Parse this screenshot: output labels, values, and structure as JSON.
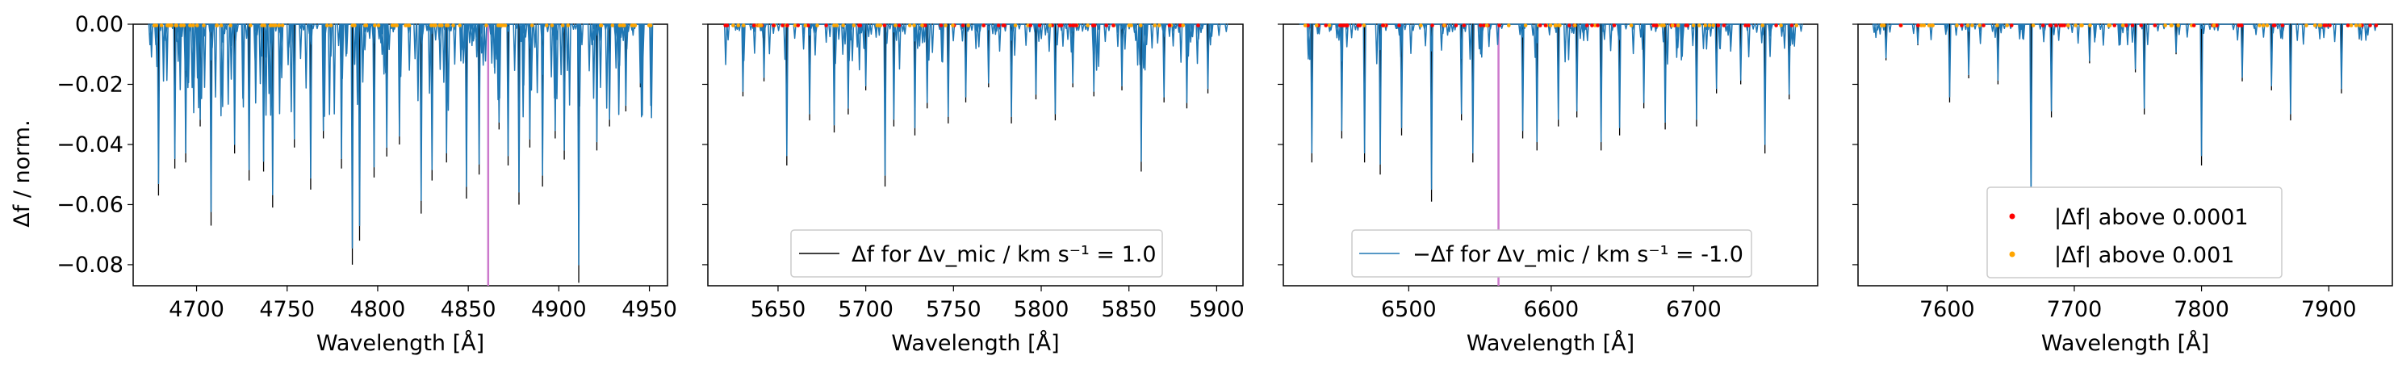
{
  "figure": {
    "ylabel": "Δf / norm.",
    "xlabel": "Wavelength [Å]"
  },
  "legend": {
    "black_line": "Δf for Δv_mic / km s⁻¹ = 1.0",
    "blue_line": "−Δf for Δv_mic / km s⁻¹ = -1.0",
    "red_dots": "|Δf| above 0.0001",
    "orange_dots": "|Δf| above 0.001"
  },
  "colors": {
    "black_series": "#000000",
    "blue_series": "#1f77b4",
    "red_markers": "#ff0000",
    "orange_markers": "#ffa500",
    "vline": "#cc79cc"
  },
  "chart_data": [
    {
      "type": "line",
      "panel": "panel-1",
      "xlim": [
        4665,
        4960
      ],
      "ylim": [
        -0.087,
        0.0
      ],
      "xticks": [
        "4700",
        "4750",
        "4800",
        "4850",
        "4900",
        "4950"
      ],
      "yticks": [
        "0.00",
        "−0.02",
        "−0.04",
        "−0.06",
        "−0.08"
      ],
      "vline_x": 4861,
      "legend": "none",
      "lines": [
        [
          4679,
          -0.057
        ],
        [
          4688,
          -0.048
        ],
        [
          4694,
          -0.046
        ],
        [
          4702,
          -0.034
        ],
        [
          4708,
          -0.067
        ],
        [
          4721,
          -0.043
        ],
        [
          4729,
          -0.052
        ],
        [
          4737,
          -0.049
        ],
        [
          4742,
          -0.061
        ],
        [
          4754,
          -0.041
        ],
        [
          4763,
          -0.055
        ],
        [
          4770,
          -0.038
        ],
        [
          4780,
          -0.048
        ],
        [
          4786,
          -0.08
        ],
        [
          4790,
          -0.072
        ],
        [
          4798,
          -0.051
        ],
        [
          4805,
          -0.044
        ],
        [
          4812,
          -0.04
        ],
        [
          4824,
          -0.063
        ],
        [
          4830,
          -0.052
        ],
        [
          4838,
          -0.046
        ],
        [
          4849,
          -0.058
        ],
        [
          4856,
          -0.05
        ],
        [
          4867,
          -0.035
        ],
        [
          4872,
          -0.047
        ],
        [
          4878,
          -0.06
        ],
        [
          4884,
          -0.041
        ],
        [
          4891,
          -0.054
        ],
        [
          4898,
          -0.038
        ],
        [
          4903,
          -0.045
        ],
        [
          4911,
          -0.086
        ],
        [
          4921,
          -0.042
        ],
        [
          4928,
          -0.034
        ],
        [
          4937,
          -0.029
        ],
        [
          4945,
          -0.021
        ]
      ],
      "orange_dots": true,
      "red_dots": false
    },
    {
      "type": "line",
      "panel": "panel-2",
      "xlim": [
        5610,
        5915
      ],
      "ylim": [
        -0.087,
        0.0
      ],
      "xticks": [
        "5650",
        "5700",
        "5750",
        "5800",
        "5850",
        "5900"
      ],
      "yticks": [],
      "vline_x": null,
      "legend": "bottom-center",
      "lines": [
        [
          5630,
          -0.024
        ],
        [
          5642,
          -0.019
        ],
        [
          5655,
          -0.047
        ],
        [
          5668,
          -0.032
        ],
        [
          5682,
          -0.036
        ],
        [
          5690,
          -0.03
        ],
        [
          5700,
          -0.022
        ],
        [
          5711,
          -0.054
        ],
        [
          5716,
          -0.034
        ],
        [
          5728,
          -0.037
        ],
        [
          5735,
          -0.028
        ],
        [
          5747,
          -0.033
        ],
        [
          5757,
          -0.026
        ],
        [
          5770,
          -0.021
        ],
        [
          5783,
          -0.033
        ],
        [
          5797,
          -0.025
        ],
        [
          5808,
          -0.032
        ],
        [
          5818,
          -0.021
        ],
        [
          5830,
          -0.024
        ],
        [
          5846,
          -0.022
        ],
        [
          5857,
          -0.049
        ],
        [
          5870,
          -0.026
        ],
        [
          5883,
          -0.028
        ],
        [
          5895,
          -0.023
        ]
      ],
      "orange_dots": true,
      "red_dots": true
    },
    {
      "type": "line",
      "panel": "panel-3",
      "xlim": [
        6412,
        6787
      ],
      "ylim": [
        -0.087,
        0.0
      ],
      "xticks": [
        "6500",
        "6600",
        "6700"
      ],
      "yticks": [],
      "vline_x": 6563,
      "legend": "bottom-center",
      "lines": [
        [
          6432,
          -0.046
        ],
        [
          6453,
          -0.038
        ],
        [
          6469,
          -0.046
        ],
        [
          6480,
          -0.05
        ],
        [
          6495,
          -0.037
        ],
        [
          6516,
          -0.059
        ],
        [
          6537,
          -0.032
        ],
        [
          6545,
          -0.046
        ],
        [
          6580,
          -0.038
        ],
        [
          6590,
          -0.042
        ],
        [
          6605,
          -0.034
        ],
        [
          6618,
          -0.031
        ],
        [
          6635,
          -0.042
        ],
        [
          6648,
          -0.037
        ],
        [
          6665,
          -0.028
        ],
        [
          6680,
          -0.035
        ],
        [
          6702,
          -0.034
        ],
        [
          6716,
          -0.023
        ],
        [
          6733,
          -0.02
        ],
        [
          6750,
          -0.043
        ],
        [
          6767,
          -0.025
        ]
      ],
      "orange_dots": true,
      "red_dots": true
    },
    {
      "type": "line",
      "panel": "panel-4",
      "xlim": [
        7530,
        7950
      ],
      "ylim": [
        -0.087,
        0.0
      ],
      "xticks": [
        "7600",
        "7700",
        "7800",
        "7900"
      ],
      "yticks": [],
      "vline_x": null,
      "legend": "bottom-center",
      "lines": [
        [
          7552,
          -0.012
        ],
        [
          7577,
          -0.007
        ],
        [
          7602,
          -0.026
        ],
        [
          7617,
          -0.018
        ],
        [
          7640,
          -0.02
        ],
        [
          7666,
          -0.063
        ],
        [
          7682,
          -0.031
        ],
        [
          7712,
          -0.013
        ],
        [
          7748,
          -0.016
        ],
        [
          7755,
          -0.03
        ],
        [
          7780,
          -0.01
        ],
        [
          7800,
          -0.047
        ],
        [
          7832,
          -0.019
        ],
        [
          7855,
          -0.022
        ],
        [
          7870,
          -0.032
        ],
        [
          7910,
          -0.023
        ],
        [
          7924,
          -0.005
        ]
      ],
      "orange_dots": true,
      "red_dots": true
    }
  ]
}
